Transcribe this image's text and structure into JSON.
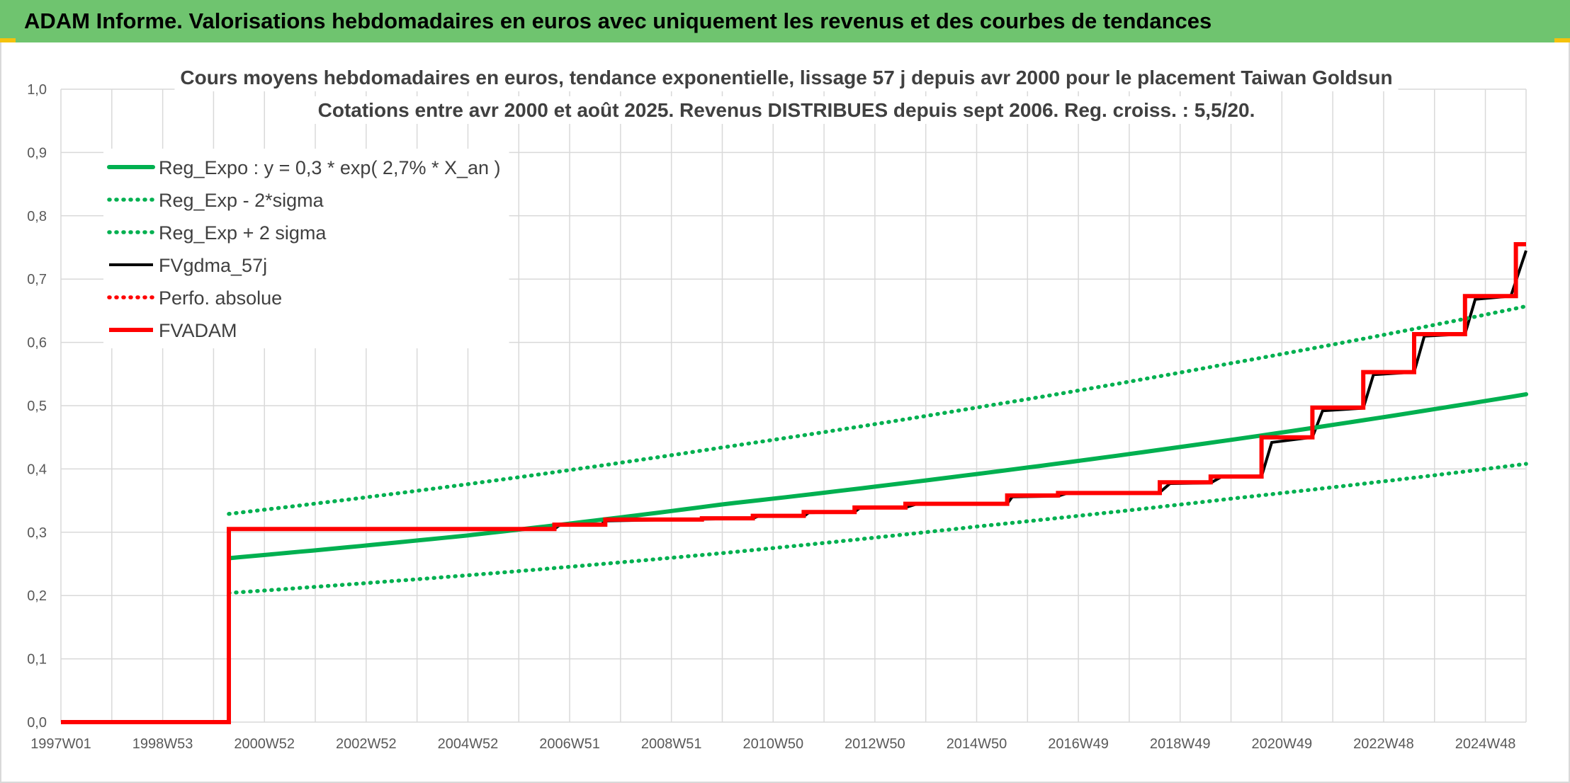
{
  "header": {
    "title": "ADAM Informe. Valorisations hebdomadaires en euros avec uniquement les revenus et des courbes de tendances"
  },
  "colors": {
    "banner": "#6fc46f",
    "green": "#00b050",
    "red": "#ff0000",
    "black": "#000000",
    "grid": "#d9d9d9"
  },
  "chart_data": {
    "type": "line",
    "title_lines": [
      "Cours moyens hebdomadaires en euros, tendance exponentielle, lissage 57 j depuis avr 2000 pour le placement Taiwan Goldsun",
      "Cotations entre avr 2000 et août 2025. Revenus DISTRIBUES depuis sept 2006. Reg. croiss. : 5,5/20."
    ],
    "xlabel": "",
    "ylabel": "",
    "x_range": [
      1997.0,
      2025.8
    ],
    "ylim": [
      0,
      1.0
    ],
    "y_ticks": [
      "0,0",
      "0,1",
      "0,2",
      "0,3",
      "0,4",
      "0,5",
      "0,6",
      "0,7",
      "0,8",
      "0,9",
      "1,0"
    ],
    "x_ticks": [
      {
        "label": "1997W01",
        "x": 1997.0
      },
      {
        "label": "1998W53",
        "x": 1999.0
      },
      {
        "label": "2000W52",
        "x": 2001.0
      },
      {
        "label": "2002W52",
        "x": 2003.0
      },
      {
        "label": "2004W52",
        "x": 2005.0
      },
      {
        "label": "2006W51",
        "x": 2007.0
      },
      {
        "label": "2008W51",
        "x": 2009.0
      },
      {
        "label": "2010W50",
        "x": 2011.0
      },
      {
        "label": "2012W50",
        "x": 2013.0
      },
      {
        "label": "2014W50",
        "x": 2015.0
      },
      {
        "label": "2016W49",
        "x": 2017.0
      },
      {
        "label": "2018W49",
        "x": 2019.0
      },
      {
        "label": "2020W49",
        "x": 2021.0
      },
      {
        "label": "2022W48",
        "x": 2023.0
      },
      {
        "label": "2024W48",
        "x": 2025.0
      }
    ],
    "grid": true,
    "legend_position": "top-left",
    "series": [
      {
        "name": "Reg_Expo : y = 0,3 * exp( 2,7% *  X_an )",
        "color": "#00b050",
        "style": "solid",
        "points": [
          [
            2000.3,
            0.259
          ],
          [
            2005.0,
            0.295
          ],
          [
            2010.0,
            0.344
          ],
          [
            2015.0,
            0.392
          ],
          [
            2020.0,
            0.446
          ],
          [
            2025.8,
            0.518
          ]
        ]
      },
      {
        "name": "Reg_Exp - 2*sigma",
        "color": "#00b050",
        "style": "dotted",
        "points": [
          [
            2000.3,
            0.204
          ],
          [
            2005.0,
            0.232
          ],
          [
            2010.0,
            0.267
          ],
          [
            2015.0,
            0.309
          ],
          [
            2020.0,
            0.353
          ],
          [
            2025.8,
            0.408
          ]
        ]
      },
      {
        "name": "Reg_Exp + 2 sigma",
        "color": "#00b050",
        "style": "dotted",
        "points": [
          [
            2000.3,
            0.329
          ],
          [
            2005.0,
            0.376
          ],
          [
            2010.0,
            0.434
          ],
          [
            2015.0,
            0.497
          ],
          [
            2020.0,
            0.567
          ],
          [
            2025.8,
            0.657
          ]
        ]
      },
      {
        "name": "FVgdma_57j",
        "color": "#000000",
        "style": "solid",
        "points": [
          [
            1997.0,
            0.0
          ],
          [
            2000.3,
            0.0
          ],
          [
            2000.3,
            0.305
          ],
          [
            2006.7,
            0.305
          ],
          [
            2006.8,
            0.311
          ],
          [
            2007.6,
            0.311
          ],
          [
            2007.7,
            0.318
          ],
          [
            2010.6,
            0.322
          ],
          [
            2010.7,
            0.325
          ],
          [
            2011.6,
            0.325
          ],
          [
            2011.7,
            0.331
          ],
          [
            2012.6,
            0.332
          ],
          [
            2012.7,
            0.338
          ],
          [
            2013.6,
            0.339
          ],
          [
            2013.8,
            0.344
          ],
          [
            2015.6,
            0.345
          ],
          [
            2015.7,
            0.356
          ],
          [
            2016.6,
            0.357
          ],
          [
            2016.8,
            0.362
          ],
          [
            2018.6,
            0.363
          ],
          [
            2018.8,
            0.377
          ],
          [
            2019.6,
            0.378
          ],
          [
            2019.8,
            0.387
          ],
          [
            2020.6,
            0.388
          ],
          [
            2020.8,
            0.442
          ],
          [
            2021.6,
            0.45
          ],
          [
            2021.8,
            0.492
          ],
          [
            2022.6,
            0.496
          ],
          [
            2022.8,
            0.549
          ],
          [
            2023.6,
            0.553
          ],
          [
            2023.8,
            0.61
          ],
          [
            2024.6,
            0.613
          ],
          [
            2024.8,
            0.668
          ],
          [
            2025.5,
            0.673
          ],
          [
            2025.8,
            0.745
          ]
        ]
      },
      {
        "name": "Perfo. absolue",
        "color": "#ff0000",
        "style": "dotted",
        "points": []
      },
      {
        "name": "FVADAM",
        "color": "#ff0000",
        "style": "solid",
        "points": [
          [
            1997.0,
            0.0
          ],
          [
            2000.3,
            0.0
          ],
          [
            2000.3,
            0.305
          ],
          [
            2006.7,
            0.305
          ],
          [
            2006.7,
            0.312
          ],
          [
            2007.7,
            0.312
          ],
          [
            2007.7,
            0.32
          ],
          [
            2009.6,
            0.32
          ],
          [
            2009.6,
            0.322
          ],
          [
            2010.6,
            0.322
          ],
          [
            2010.6,
            0.326
          ],
          [
            2011.6,
            0.326
          ],
          [
            2011.6,
            0.332
          ],
          [
            2012.6,
            0.332
          ],
          [
            2012.6,
            0.339
          ],
          [
            2013.6,
            0.339
          ],
          [
            2013.6,
            0.345
          ],
          [
            2015.6,
            0.345
          ],
          [
            2015.6,
            0.358
          ],
          [
            2016.6,
            0.358
          ],
          [
            2016.6,
            0.362
          ],
          [
            2018.6,
            0.362
          ],
          [
            2018.6,
            0.379
          ],
          [
            2019.6,
            0.379
          ],
          [
            2019.6,
            0.388
          ],
          [
            2020.6,
            0.388
          ],
          [
            2020.6,
            0.45
          ],
          [
            2021.6,
            0.45
          ],
          [
            2021.6,
            0.497
          ],
          [
            2022.6,
            0.497
          ],
          [
            2022.6,
            0.553
          ],
          [
            2023.6,
            0.553
          ],
          [
            2023.6,
            0.613
          ],
          [
            2024.6,
            0.613
          ],
          [
            2024.6,
            0.673
          ],
          [
            2025.6,
            0.673
          ],
          [
            2025.6,
            0.755
          ],
          [
            2025.8,
            0.755
          ]
        ]
      }
    ]
  }
}
